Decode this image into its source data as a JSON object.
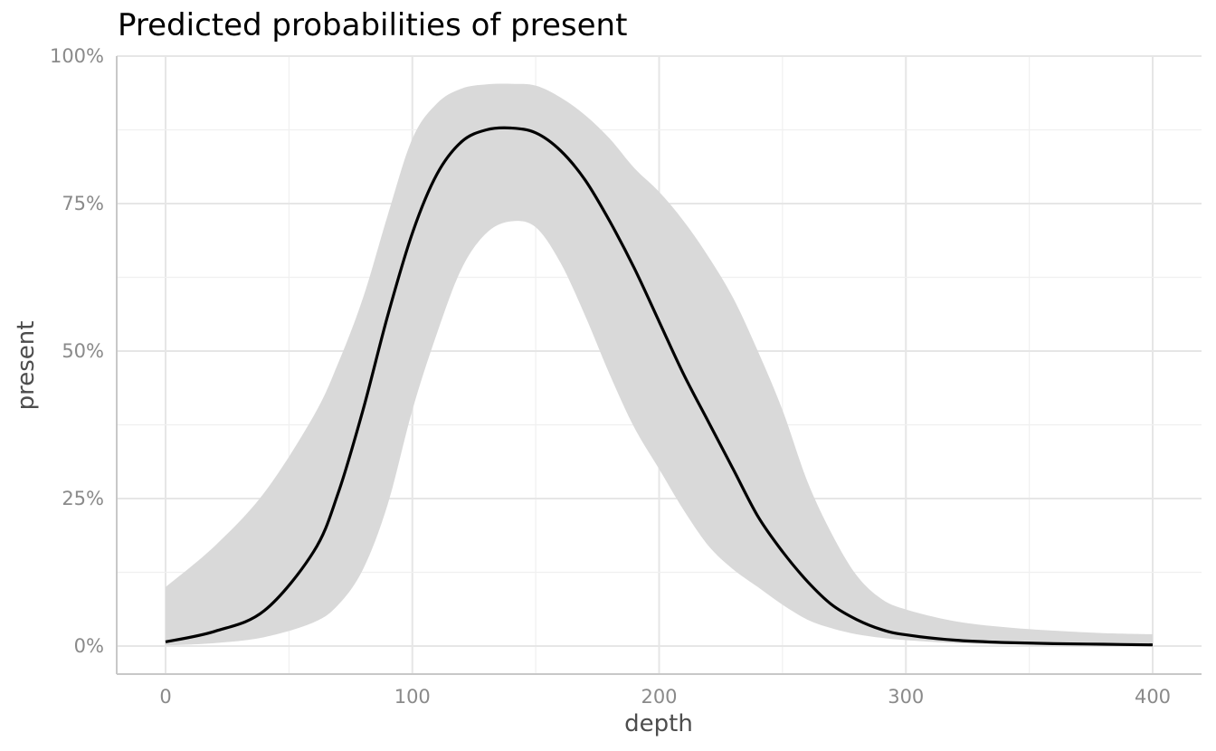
{
  "title": "Predicted probabilities of present",
  "chart_data": {
    "type": "line",
    "title": "Predicted probabilities of present",
    "xlabel": "depth",
    "ylabel": "present",
    "xlim": [
      -20,
      420
    ],
    "ylim": [
      -0.046,
      1.0
    ],
    "x_ticks": [
      0,
      100,
      200,
      300,
      400
    ],
    "x_tick_labels": [
      "0",
      "100",
      "200",
      "300",
      "400"
    ],
    "y_ticks": [
      0,
      0.25,
      0.5,
      0.75,
      1.0
    ],
    "y_tick_labels": [
      "0%",
      "25%",
      "50%",
      "75%",
      "100%"
    ],
    "grid": true,
    "series": [
      {
        "x": [
          0,
          20,
          40,
          60,
          70,
          80,
          90,
          100,
          110,
          120,
          130,
          140,
          150,
          160,
          170,
          180,
          190,
          200,
          210,
          220,
          230,
          240,
          250,
          260,
          270,
          280,
          290,
          300,
          320,
          340,
          360,
          380,
          400
        ],
        "y": [
          0.007,
          0.025,
          0.06,
          0.16,
          0.26,
          0.4,
          0.56,
          0.7,
          0.8,
          0.855,
          0.875,
          0.878,
          0.87,
          0.84,
          0.79,
          0.72,
          0.64,
          0.55,
          0.46,
          0.38,
          0.3,
          0.22,
          0.16,
          0.11,
          0.07,
          0.045,
          0.028,
          0.019,
          0.01,
          0.006,
          0.004,
          0.003,
          0.002
        ],
        "lower": [
          0.001,
          0.005,
          0.015,
          0.04,
          0.07,
          0.13,
          0.24,
          0.4,
          0.53,
          0.64,
          0.7,
          0.72,
          0.71,
          0.65,
          0.56,
          0.46,
          0.37,
          0.3,
          0.23,
          0.17,
          0.13,
          0.1,
          0.07,
          0.045,
          0.03,
          0.02,
          0.014,
          0.01,
          0.005,
          0.003,
          0.002,
          0.001,
          0.001
        ],
        "upper": [
          0.1,
          0.17,
          0.26,
          0.39,
          0.48,
          0.59,
          0.73,
          0.86,
          0.92,
          0.945,
          0.952,
          0.953,
          0.95,
          0.93,
          0.9,
          0.86,
          0.81,
          0.77,
          0.72,
          0.66,
          0.59,
          0.5,
          0.4,
          0.28,
          0.19,
          0.12,
          0.08,
          0.062,
          0.042,
          0.032,
          0.026,
          0.022,
          0.02
        ]
      }
    ]
  }
}
